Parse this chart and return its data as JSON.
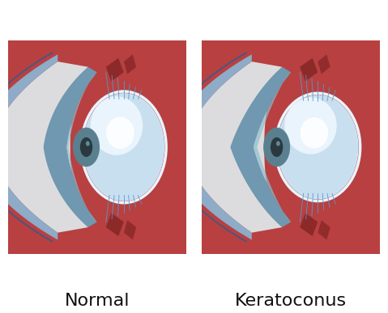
{
  "labels": [
    "Normal",
    "Keratoconus"
  ],
  "background": "#ffffff",
  "panel_bg": "#ffffff",
  "red_sclera": "#b84040",
  "red_sclera_dark": "#7a2020",
  "blue_band": "#7aaac8",
  "blue_band_dark": "#4a7a9a",
  "cornea_blue": "#6090a8",
  "cornea_teal": "#7aabb8",
  "white_sclera": "#e8e8ea",
  "lens_color": "#cce0f0",
  "lens_highlight": "#eaf5ff",
  "pupil_dark": "#3a4855",
  "pupil_mid": "#6a8898",
  "fiber_color": "#5599cc",
  "border_color": "#888888",
  "text_color": "#111111",
  "label_fontsize": 16,
  "fig_width": 4.79,
  "fig_height": 3.87
}
